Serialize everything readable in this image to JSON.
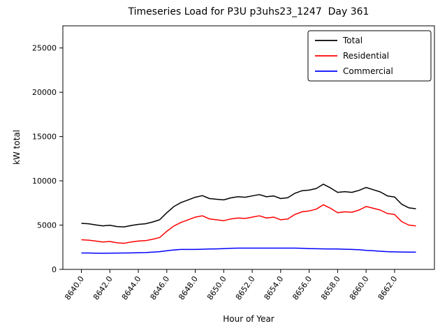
{
  "figure": {
    "title": "Timeseries Load for P3U p3uhs23_1247  Day 361",
    "xlabel": "Hour of Year",
    "ylabel": "kW total"
  },
  "chart_data": {
    "type": "line",
    "title": "Timeseries Load for P3U p3uhs23_1247  Day 361",
    "xlabel": "Hour of Year",
    "ylabel": "kW total",
    "grid": false,
    "legend_position": "upper right",
    "xlim": [
      8638.7,
      8664.8
    ],
    "ylim": [
      0,
      27500
    ],
    "xticks": [
      8640,
      8642,
      8644,
      8646,
      8648,
      8650,
      8652,
      8654,
      8656,
      8658,
      8660,
      8662
    ],
    "xtick_labels": [
      "8640.0",
      "8642.0",
      "8644.0",
      "8646.0",
      "8648.0",
      "8650.0",
      "8652.0",
      "8654.0",
      "8656.0",
      "8658.0",
      "8660.0",
      "8662.0"
    ],
    "yticks": [
      0,
      5000,
      10000,
      15000,
      20000,
      25000
    ],
    "ytick_labels": [
      "0",
      "5000",
      "10000",
      "15000",
      "20000",
      "25000"
    ],
    "x": [
      8640.0,
      8640.5,
      8641.0,
      8641.5,
      8642.0,
      8642.5,
      8643.0,
      8643.5,
      8644.0,
      8644.5,
      8645.0,
      8645.5,
      8646.0,
      8646.5,
      8647.0,
      8647.5,
      8648.0,
      8648.5,
      8649.0,
      8649.5,
      8650.0,
      8650.5,
      8651.0,
      8651.5,
      8652.0,
      8652.5,
      8653.0,
      8653.5,
      8654.0,
      8654.5,
      8655.0,
      8655.5,
      8656.0,
      8656.5,
      8657.0,
      8657.5,
      8658.0,
      8658.5,
      8659.0,
      8659.5,
      8660.0,
      8660.5,
      8661.0,
      8661.5,
      8662.0,
      8662.5,
      8663.0,
      8663.5
    ],
    "series": [
      {
        "name": "Total",
        "color": "#000000",
        "values": [
          5200,
          5150,
          5030,
          4920,
          4980,
          4840,
          4800,
          4960,
          5080,
          5150,
          5350,
          5600,
          6400,
          7100,
          7550,
          7850,
          8150,
          8330,
          8000,
          7920,
          7850,
          8080,
          8200,
          8150,
          8300,
          8450,
          8200,
          8300,
          8000,
          8100,
          8600,
          8880,
          8950,
          9130,
          9620,
          9200,
          8700,
          8780,
          8700,
          8920,
          9250,
          9000,
          8750,
          8300,
          8180,
          7360,
          6950,
          6850
        ]
      },
      {
        "name": "Residential",
        "color": "#ff0000",
        "values": [
          3350,
          3300,
          3200,
          3100,
          3150,
          3000,
          2950,
          3100,
          3200,
          3250,
          3400,
          3600,
          4300,
          4900,
          5300,
          5600,
          5900,
          6050,
          5700,
          5600,
          5500,
          5700,
          5800,
          5750,
          5900,
          6050,
          5800,
          5900,
          5600,
          5700,
          6200,
          6500,
          6600,
          6800,
          7300,
          6900,
          6400,
          6500,
          6450,
          6700,
          7100,
          6900,
          6700,
          6300,
          6200,
          5400,
          5000,
          4900
        ]
      },
      {
        "name": "Commercial",
        "color": "#0000ff",
        "values": [
          1850,
          1850,
          1830,
          1820,
          1830,
          1840,
          1850,
          1860,
          1880,
          1900,
          1950,
          2000,
          2100,
          2200,
          2250,
          2250,
          2250,
          2280,
          2300,
          2320,
          2350,
          2380,
          2400,
          2400,
          2400,
          2400,
          2400,
          2400,
          2400,
          2400,
          2400,
          2380,
          2350,
          2330,
          2320,
          2300,
          2300,
          2280,
          2250,
          2220,
          2150,
          2100,
          2050,
          2000,
          1980,
          1960,
          1950,
          1950
        ]
      }
    ]
  }
}
